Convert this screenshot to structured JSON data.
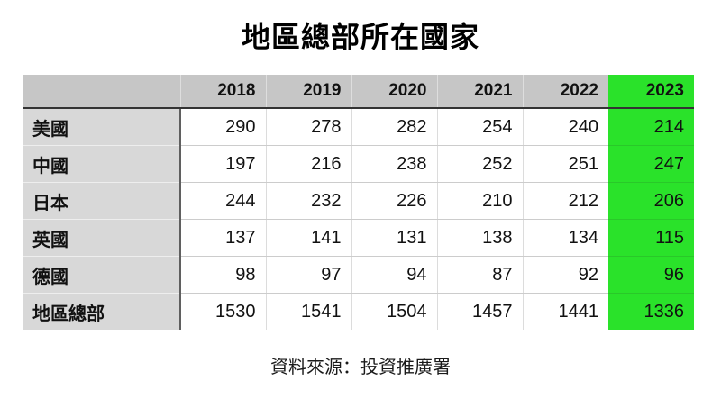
{
  "title": "地區總部所在國家",
  "source_note": "資料來源：投資推廣署",
  "colors": {
    "header_bg": "#c6c6c6",
    "row_label_bg": "#d8d8d8",
    "highlight_green": "#2ae22a"
  },
  "chart_data": {
    "type": "table",
    "title": "地區總部所在國家",
    "columns": [
      "",
      "2018",
      "2019",
      "2020",
      "2021",
      "2022",
      "2023"
    ],
    "highlight_column": "2023",
    "rows": [
      {
        "label": "美國",
        "values": [
          290,
          278,
          282,
          254,
          240,
          214
        ]
      },
      {
        "label": "中國",
        "values": [
          197,
          216,
          238,
          252,
          251,
          247
        ]
      },
      {
        "label": "日本",
        "values": [
          244,
          232,
          226,
          210,
          212,
          206
        ]
      },
      {
        "label": "英國",
        "values": [
          137,
          141,
          131,
          138,
          134,
          115
        ]
      },
      {
        "label": "德國",
        "values": [
          98,
          97,
          94,
          87,
          92,
          96
        ]
      },
      {
        "label": "地區總部",
        "values": [
          1530,
          1541,
          1504,
          1457,
          1441,
          1336
        ]
      }
    ],
    "source": "資料來源：投資推廣署"
  }
}
